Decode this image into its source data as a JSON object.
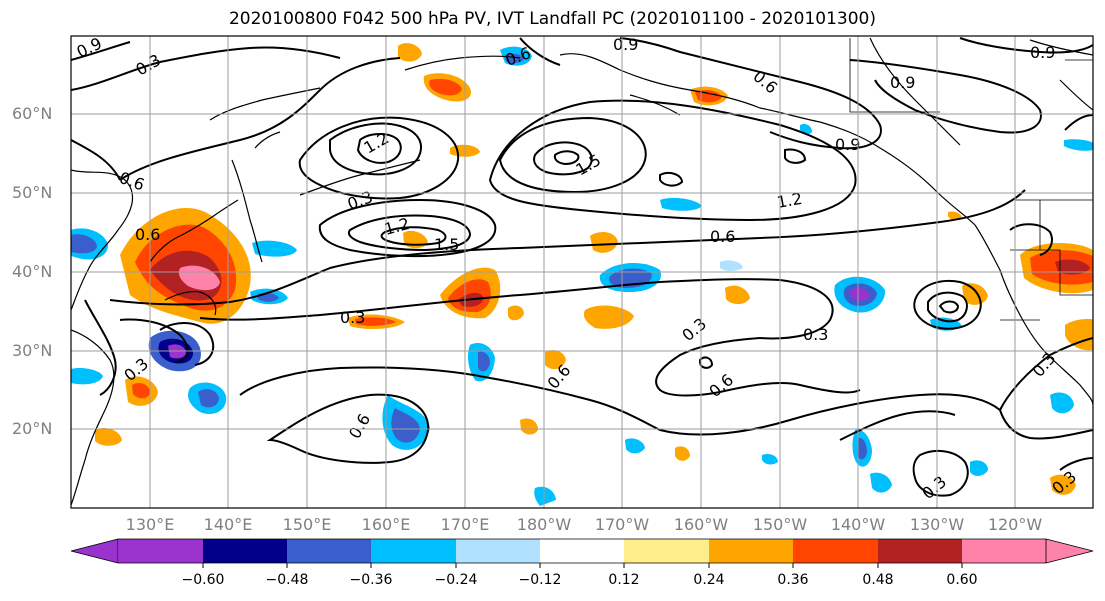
{
  "title": "2020100800 F042 500 hPa PV, IVT Landfall PC (2020101100 - 2020101300)",
  "lat_labels": [
    "60°N",
    "50°N",
    "40°N",
    "30°N",
    "20°N"
  ],
  "lon_labels": [
    "130°E",
    "140°E",
    "150°E",
    "160°E",
    "170°E",
    "180°W",
    "170°W",
    "160°W",
    "150°W",
    "140°W",
    "130°W",
    "120°W"
  ],
  "contour_labels": [
    "0.9",
    "0.6",
    "0.3",
    "1.2",
    "1.5",
    "0.9",
    "0.6",
    "0.6",
    "0.3",
    "1.2",
    "1.5",
    "0.6",
    "1.2",
    "0.9",
    "0.3",
    "0.6",
    "0.3",
    "0.6",
    "0.3",
    "0.6",
    "0.3",
    "0.3",
    "0.9",
    "0.9",
    "0.6",
    "0.3",
    "0.3"
  ],
  "colorbar": {
    "colors": [
      "#9a32cd",
      "#00008b",
      "#3a5fcd",
      "#00bfff",
      "#b0e2ff",
      "#ffffff",
      "#ffec8b",
      "#ffa500",
      "#ff4500",
      "#b22222",
      "#ff82ab"
    ],
    "tick_labels": [
      "−0.60",
      "−0.48",
      "−0.36",
      "−0.24",
      "−0.12",
      "0.12",
      "0.24",
      "0.36",
      "0.48",
      "0.60"
    ]
  }
}
